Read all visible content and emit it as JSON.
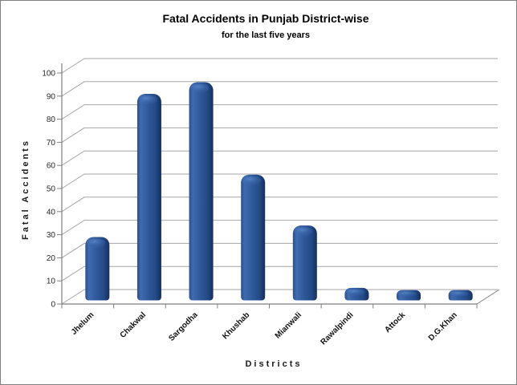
{
  "window": {
    "background": "#FFFFFF",
    "border_color": "#7F7F7F"
  },
  "chart_data": {
    "type": "bar",
    "style_3d": "rounded-box-3d",
    "title": "Fatal Accidents in Punjab District-wise",
    "subtitle": "for the last five years",
    "xlabel": "D i s t r i c t s",
    "ylabel": "F a t a l   A c c i d e n t s",
    "xlabel_plain": "Districts",
    "ylabel_plain": "Fatal Accidents",
    "categories": [
      "Jhelum",
      "Chakwal",
      "Sargodha",
      "Khushab",
      "Mianwali",
      "Rawalpindi",
      "Attock",
      "D.G.Khan"
    ],
    "values": [
      25,
      87,
      92,
      52,
      30,
      3,
      2,
      2
    ],
    "ylim": [
      0,
      100
    ],
    "ytick_step": 10,
    "yticks": [
      0,
      10,
      20,
      30,
      40,
      50,
      60,
      70,
      80,
      90,
      100
    ],
    "grid": true,
    "legend": false,
    "colors": {
      "bar_fill": "#2E5897",
      "bar_highlight": "#4C7ABB",
      "bar_light": "#3F6CAF",
      "bar_dark": "#16305F",
      "bar_edge": "#2B4E89",
      "gridline": "#A6A6A6",
      "axis": "#7F7F7F",
      "title_text": "#000000",
      "tick_text": "#262626"
    }
  }
}
